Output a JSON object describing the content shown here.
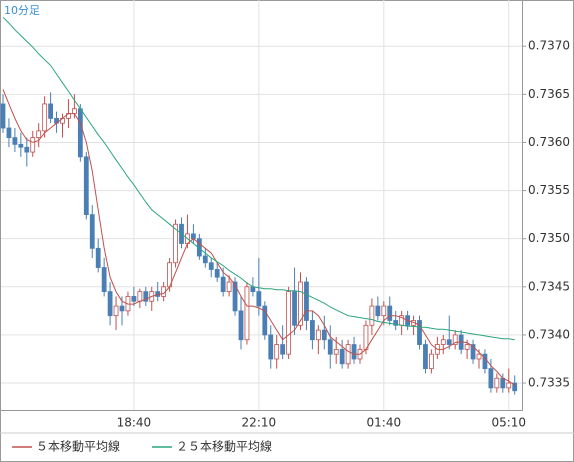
{
  "chart_data": {
    "type": "candlestick",
    "title": "10分足",
    "categories": [
      null,
      null,
      null,
      null,
      null,
      null,
      null,
      null,
      null,
      null,
      null,
      null,
      null,
      null,
      null,
      null,
      null,
      null,
      null,
      null,
      null,
      null,
      "18:40",
      null,
      null,
      null,
      null,
      null,
      null,
      null,
      null,
      null,
      null,
      null,
      null,
      null,
      null,
      null,
      null,
      null,
      null,
      null,
      null,
      "22:10",
      null,
      null,
      null,
      null,
      null,
      null,
      null,
      null,
      null,
      null,
      null,
      null,
      null,
      null,
      null,
      null,
      null,
      null,
      null,
      null,
      "01:40",
      null,
      null,
      null,
      null,
      null,
      null,
      null,
      null,
      null,
      null,
      null,
      null,
      null,
      null,
      null,
      null,
      null,
      null,
      null,
      null,
      "05:10",
      null
    ],
    "up_color": "#c0504d",
    "down_color": "#4a7fb5",
    "candles": [
      [
        0.7364,
        0.7365,
        0.7361,
        0.73615
      ],
      [
        0.73615,
        0.73625,
        0.73595,
        0.73605
      ],
      [
        0.73605,
        0.73615,
        0.7359,
        0.73598
      ],
      [
        0.73598,
        0.7361,
        0.73585,
        0.73595
      ],
      [
        0.73595,
        0.73605,
        0.73575,
        0.7359
      ],
      [
        0.7359,
        0.73612,
        0.73585,
        0.73605
      ],
      [
        0.73605,
        0.7362,
        0.73595,
        0.73612
      ],
      [
        0.73612,
        0.73648,
        0.73605,
        0.7364
      ],
      [
        0.7364,
        0.73652,
        0.7362,
        0.73625
      ],
      [
        0.73625,
        0.73632,
        0.7361,
        0.7362
      ],
      [
        0.7362,
        0.7363,
        0.73605,
        0.73625
      ],
      [
        0.73625,
        0.73645,
        0.73615,
        0.7363
      ],
      [
        0.7363,
        0.7365,
        0.73625,
        0.73635
      ],
      [
        0.73635,
        0.7364,
        0.7358,
        0.73585
      ],
      [
        0.73585,
        0.7359,
        0.7352,
        0.73525
      ],
      [
        0.73525,
        0.73535,
        0.7348,
        0.7349
      ],
      [
        0.7349,
        0.735,
        0.73465,
        0.7347
      ],
      [
        0.7347,
        0.7348,
        0.7344,
        0.73445
      ],
      [
        0.73445,
        0.73455,
        0.7341,
        0.7342
      ],
      [
        0.7342,
        0.7344,
        0.73405,
        0.7343
      ],
      [
        0.7343,
        0.7344,
        0.7341,
        0.73425
      ],
      [
        0.73425,
        0.73445,
        0.7342,
        0.7344
      ],
      [
        0.7344,
        0.7345,
        0.7343,
        0.73435
      ],
      [
        0.73435,
        0.73448,
        0.73428,
        0.73445
      ],
      [
        0.73445,
        0.7345,
        0.7343,
        0.73435
      ],
      [
        0.73435,
        0.7345,
        0.73425,
        0.73445
      ],
      [
        0.73445,
        0.73455,
        0.73435,
        0.7344
      ],
      [
        0.7344,
        0.73455,
        0.73435,
        0.7345
      ],
      [
        0.7345,
        0.7348,
        0.73445,
        0.73475
      ],
      [
        0.73475,
        0.7352,
        0.7347,
        0.73515
      ],
      [
        0.73515,
        0.73522,
        0.7349,
        0.73495
      ],
      [
        0.73495,
        0.73525,
        0.7349,
        0.73505
      ],
      [
        0.73505,
        0.73515,
        0.73495,
        0.735
      ],
      [
        0.735,
        0.73505,
        0.73478,
        0.73482
      ],
      [
        0.73482,
        0.7349,
        0.7347,
        0.73475
      ],
      [
        0.73475,
        0.7348,
        0.7346,
        0.73468
      ],
      [
        0.73468,
        0.73475,
        0.73455,
        0.7346
      ],
      [
        0.7346,
        0.7347,
        0.7344,
        0.73445
      ],
      [
        0.73445,
        0.73462,
        0.7344,
        0.73455
      ],
      [
        0.73455,
        0.7346,
        0.7342,
        0.73425
      ],
      [
        0.73425,
        0.7344,
        0.73385,
        0.73395
      ],
      [
        0.73395,
        0.73455,
        0.7339,
        0.7345
      ],
      [
        0.7345,
        0.7346,
        0.7344,
        0.73445
      ],
      [
        0.73445,
        0.7348,
        0.7342,
        0.7343
      ],
      [
        0.7343,
        0.73435,
        0.73395,
        0.734
      ],
      [
        0.734,
        0.7341,
        0.73365,
        0.73375
      ],
      [
        0.73375,
        0.734,
        0.73365,
        0.7339
      ],
      [
        0.7339,
        0.7341,
        0.73375,
        0.7338
      ],
      [
        0.7338,
        0.7345,
        0.73375,
        0.73445
      ],
      [
        0.73445,
        0.7347,
        0.734,
        0.7341
      ],
      [
        0.7341,
        0.73465,
        0.73405,
        0.73455
      ],
      [
        0.73455,
        0.7346,
        0.73405,
        0.73415
      ],
      [
        0.73415,
        0.73425,
        0.73385,
        0.73395
      ],
      [
        0.73395,
        0.7341,
        0.7338,
        0.73405
      ],
      [
        0.73405,
        0.7342,
        0.73385,
        0.73395
      ],
      [
        0.73395,
        0.7341,
        0.73365,
        0.7338
      ],
      [
        0.7338,
        0.73398,
        0.7337,
        0.73385
      ],
      [
        0.73385,
        0.73395,
        0.73365,
        0.7337
      ],
      [
        0.7337,
        0.73395,
        0.73365,
        0.7339
      ],
      [
        0.7339,
        0.73398,
        0.7337,
        0.73375
      ],
      [
        0.73375,
        0.7339,
        0.7337,
        0.73385
      ],
      [
        0.73385,
        0.73415,
        0.7338,
        0.7341
      ],
      [
        0.7341,
        0.73438,
        0.734,
        0.7343
      ],
      [
        0.7343,
        0.7344,
        0.73415,
        0.7342
      ],
      [
        0.7342,
        0.73435,
        0.7341,
        0.7343
      ],
      [
        0.7343,
        0.7344,
        0.7341,
        0.73415
      ],
      [
        0.73415,
        0.73425,
        0.73405,
        0.7341
      ],
      [
        0.7341,
        0.73425,
        0.734,
        0.7342
      ],
      [
        0.7342,
        0.73425,
        0.73405,
        0.7341
      ],
      [
        0.7341,
        0.7342,
        0.734,
        0.73415
      ],
      [
        0.73415,
        0.7342,
        0.73385,
        0.7339
      ],
      [
        0.7339,
        0.73395,
        0.7336,
        0.73365
      ],
      [
        0.73365,
        0.73385,
        0.7336,
        0.7338
      ],
      [
        0.7338,
        0.73398,
        0.73375,
        0.7339
      ],
      [
        0.7339,
        0.734,
        0.7338,
        0.73395
      ],
      [
        0.73395,
        0.7342,
        0.73385,
        0.7339
      ],
      [
        0.7339,
        0.73405,
        0.73385,
        0.734
      ],
      [
        0.734,
        0.73405,
        0.7338,
        0.73385
      ],
      [
        0.73385,
        0.73395,
        0.73375,
        0.7339
      ],
      [
        0.7339,
        0.73395,
        0.7337,
        0.73375
      ],
      [
        0.73375,
        0.73385,
        0.73365,
        0.7338
      ],
      [
        0.7338,
        0.73385,
        0.7336,
        0.73365
      ],
      [
        0.73365,
        0.73375,
        0.7334,
        0.73345
      ],
      [
        0.73345,
        0.7336,
        0.7334,
        0.73355
      ],
      [
        0.73355,
        0.7336,
        0.7334,
        0.73345
      ],
      [
        0.73345,
        0.73365,
        0.7334,
        0.7335
      ],
      [
        0.7335,
        0.73358,
        0.73338,
        0.73342
      ]
    ],
    "series": [
      {
        "name": "５本移動平均線",
        "color": "#c0504d",
        "values": [
          0.73655,
          0.7364,
          0.73625,
          0.73612,
          0.73603,
          0.736,
          0.73602,
          0.7361,
          0.73615,
          0.7362,
          0.73625,
          0.7363,
          0.7363,
          0.7362,
          0.736,
          0.7357,
          0.7353,
          0.7349,
          0.7346,
          0.73445,
          0.73435,
          0.73432,
          0.73432,
          0.73435,
          0.73437,
          0.7344,
          0.73442,
          0.73443,
          0.7345,
          0.73465,
          0.7348,
          0.73495,
          0.735,
          0.73495,
          0.7349,
          0.73485,
          0.73475,
          0.73465,
          0.7346,
          0.73452,
          0.7344,
          0.7343,
          0.7343,
          0.73428,
          0.73425,
          0.73415,
          0.73405,
          0.73395,
          0.734,
          0.73405,
          0.73415,
          0.73425,
          0.73425,
          0.7342,
          0.7341,
          0.73398,
          0.73393,
          0.73388,
          0.73383,
          0.7338,
          0.7338,
          0.73385,
          0.73395,
          0.73405,
          0.73415,
          0.7342,
          0.7342,
          0.73418,
          0.73415,
          0.73413,
          0.7341,
          0.734,
          0.7339,
          0.73385,
          0.73385,
          0.73388,
          0.73392,
          0.73393,
          0.73392,
          0.73388,
          0.73382,
          0.73376,
          0.73368,
          0.73362,
          0.73355,
          0.73352,
          0.73348
        ]
      },
      {
        "name": "２５本移動平均線",
        "color": "#2aa57d",
        "values": [
          0.7373,
          0.73724,
          0.73717,
          0.73711,
          0.73705,
          0.73699,
          0.73692,
          0.73686,
          0.7368,
          0.73671,
          0.73662,
          0.73653,
          0.73644,
          0.73635,
          0.73626,
          0.73617,
          0.73608,
          0.736,
          0.73591,
          0.73582,
          0.73573,
          0.73564,
          0.73556,
          0.73547,
          0.73538,
          0.7353,
          0.73525,
          0.7352,
          0.73515,
          0.7351,
          0.73505,
          0.735,
          0.73495,
          0.7349,
          0.73485,
          0.7348,
          0.73476,
          0.73472,
          0.73467,
          0.73463,
          0.73459,
          0.73454,
          0.7345,
          0.73449,
          0.73448,
          0.73448,
          0.73447,
          0.73447,
          0.73446,
          0.73446,
          0.73445,
          0.73442,
          0.73439,
          0.73436,
          0.73433,
          0.73429,
          0.73426,
          0.73423,
          0.7342,
          0.73419,
          0.73418,
          0.73417,
          0.73416,
          0.73414,
          0.73413,
          0.73412,
          0.73411,
          0.7341,
          0.73409,
          0.73409,
          0.73408,
          0.73408,
          0.73407,
          0.73406,
          0.73406,
          0.73405,
          0.73404,
          0.73403,
          0.73402,
          0.73401,
          0.734,
          0.73399,
          0.73398,
          0.73397,
          0.73396,
          0.73396,
          0.73395
        ]
      }
    ],
    "ylim": [
      0.73322,
      0.73748
    ],
    "yticks": [
      0.7335,
      {
        "value": 0.734,
        "label": "0.7340"
      },
      0.7345,
      {
        "value": 0.735,
        "label": "0.7350"
      },
      0.7355,
      {
        "value": 0.736,
        "label": "0.7360"
      },
      0.7365,
      {
        "value": 0.737,
        "label": "0.7370"
      }
    ],
    "grid": true
  }
}
